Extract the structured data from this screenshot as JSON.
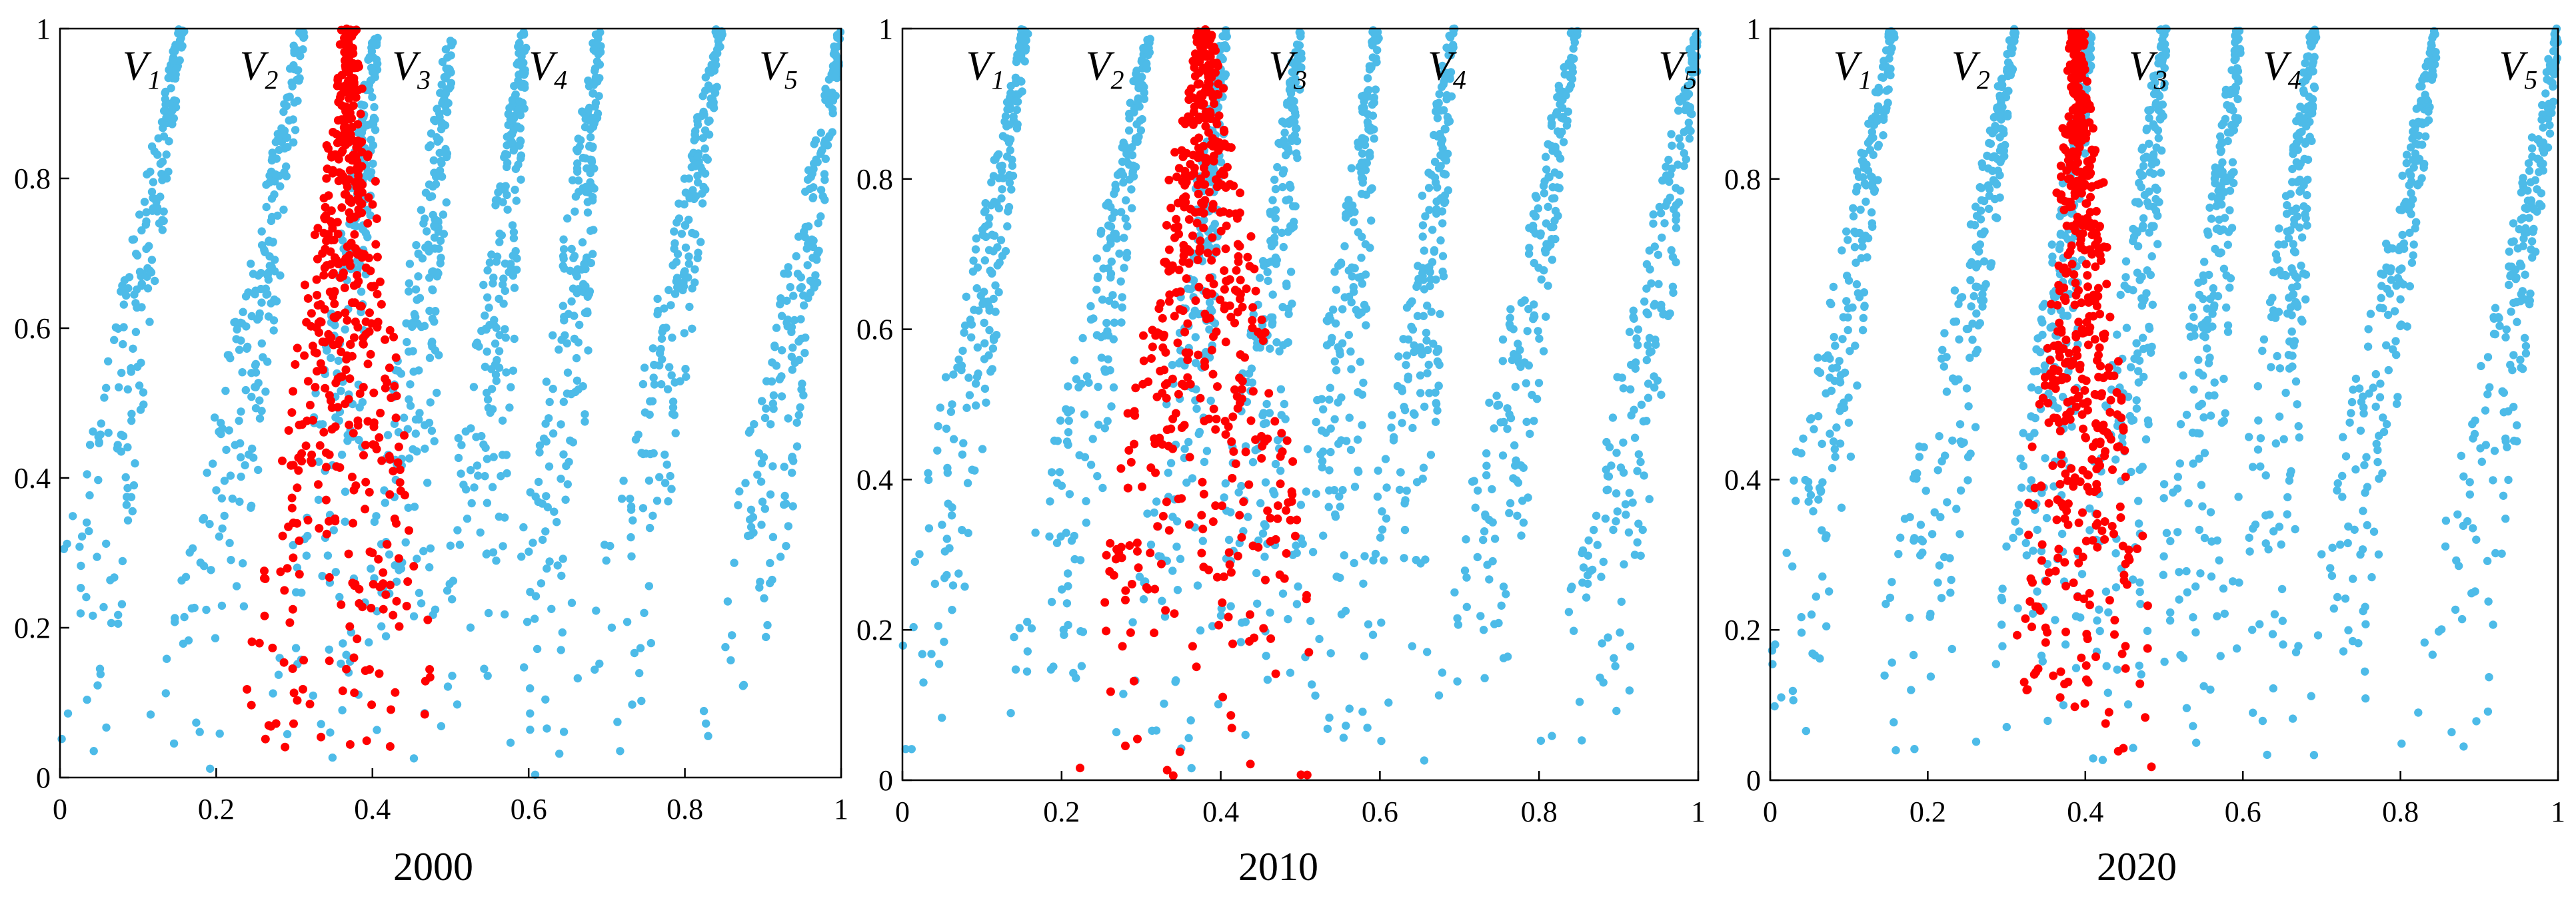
{
  "colors": {
    "blue": "#4dbbe8",
    "red": "#ff0000",
    "axis": "#000000"
  },
  "chart_data": [
    {
      "type": "scatter",
      "title": "2000",
      "xlim": [
        0,
        1
      ],
      "ylim": [
        0,
        1
      ],
      "xticks": [
        "0",
        "0.2",
        "0.4",
        "0.6",
        "0.8",
        "1"
      ],
      "yticks": [
        "0",
        "0.2",
        "0.4",
        "0.6",
        "0.8",
        "1"
      ],
      "curve_labels": [
        {
          "base": "V",
          "sub": "1",
          "x": 0.08,
          "y": 0.95
        },
        {
          "base": "V",
          "sub": "2",
          "x": 0.23,
          "y": 0.95
        },
        {
          "base": "V",
          "sub": "3",
          "x": 0.425,
          "y": 0.95
        },
        {
          "base": "V",
          "sub": "4",
          "x": 0.6,
          "y": 0.95
        },
        {
          "base": "V",
          "sub": "5",
          "x": 0.895,
          "y": 0.95
        }
      ],
      "series": [
        {
          "color": "blue",
          "kind": "bands",
          "peaks": [
            0.31,
            0.5,
            0.69
          ],
          "xrange": [
            0,
            1
          ]
        },
        {
          "color": "red",
          "kind": "cone",
          "apex_x": 0.37,
          "left_x0": 0.22,
          "right_x0": 0.49
        }
      ]
    },
    {
      "type": "scatter",
      "title": "2010",
      "xlim": [
        0,
        1
      ],
      "ylim": [
        0,
        1
      ],
      "xticks": [
        "0",
        "0.2",
        "0.4",
        "0.6",
        "0.8",
        "1"
      ],
      "yticks": [
        "0",
        "0.2",
        "0.4",
        "0.6",
        "0.8",
        "1"
      ],
      "curve_labels": [
        {
          "base": "V",
          "sub": "1",
          "x": 0.08,
          "y": 0.95
        },
        {
          "base": "V",
          "sub": "2",
          "x": 0.23,
          "y": 0.95
        },
        {
          "base": "V",
          "sub": "3",
          "x": 0.46,
          "y": 0.95
        },
        {
          "base": "V",
          "sub": "4",
          "x": 0.66,
          "y": 0.95
        },
        {
          "base": "V",
          "sub": "5",
          "x": 0.95,
          "y": 0.95
        }
      ],
      "series": [
        {
          "color": "blue",
          "kind": "bands",
          "peaks": [
            0.31,
            0.5,
            0.69
          ],
          "xrange": [
            0,
            1
          ]
        },
        {
          "color": "red",
          "kind": "cone",
          "apex_x": 0.38,
          "left_x0": 0.2,
          "right_x0": 0.57
        }
      ]
    },
    {
      "type": "scatter",
      "title": "2020",
      "xlim": [
        0,
        1
      ],
      "ylim": [
        0,
        1
      ],
      "xticks": [
        "0",
        "0.2",
        "0.4",
        "0.6",
        "0.8",
        "1"
      ],
      "yticks": [
        "0",
        "0.2",
        "0.4",
        "0.8",
        "1"
      ],
      "ytick_values": [
        0,
        0.2,
        0.4,
        0.8,
        1
      ],
      "curve_labels": [
        {
          "base": "V",
          "sub": "1",
          "x": 0.08,
          "y": 0.95
        },
        {
          "base": "V",
          "sub": "2",
          "x": 0.23,
          "y": 0.95
        },
        {
          "base": "V",
          "sub": "3",
          "x": 0.455,
          "y": 0.95
        },
        {
          "base": "V",
          "sub": "4",
          "x": 0.625,
          "y": 0.95
        },
        {
          "base": "V",
          "sub": "5",
          "x": 0.925,
          "y": 0.95
        }
      ],
      "series": [
        {
          "color": "blue",
          "kind": "bands",
          "peaks": [
            0.31,
            0.5,
            0.69
          ],
          "xrange": [
            0,
            1
          ]
        },
        {
          "color": "red",
          "kind": "cone",
          "apex_x": 0.39,
          "left_x0": 0.3,
          "right_x0": 0.5
        }
      ]
    }
  ]
}
